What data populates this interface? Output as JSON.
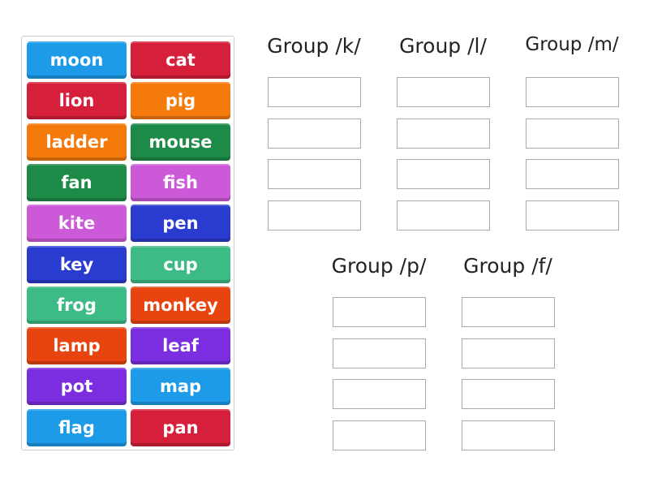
{
  "tiles": [
    {
      "label": "moon",
      "color": "#1e9be8"
    },
    {
      "label": "cat",
      "color": "#d61f3a"
    },
    {
      "label": "lion",
      "color": "#d61f3a"
    },
    {
      "label": "pig",
      "color": "#f57a0c"
    },
    {
      "label": "ladder",
      "color": "#f57a0c"
    },
    {
      "label": "mouse",
      "color": "#1e8a48"
    },
    {
      "label": "fan",
      "color": "#1e8a48"
    },
    {
      "label": "fish",
      "color": "#cc5ad8"
    },
    {
      "label": "kite",
      "color": "#cc5ad8"
    },
    {
      "label": "pen",
      "color": "#2a3bd0"
    },
    {
      "label": "key",
      "color": "#2a3bd0"
    },
    {
      "label": "cup",
      "color": "#3dbb86"
    },
    {
      "label": "frog",
      "color": "#3dbb86"
    },
    {
      "label": "monkey",
      "color": "#e84410"
    },
    {
      "label": "lamp",
      "color": "#e84410"
    },
    {
      "label": "leaf",
      "color": "#7a2ee0"
    },
    {
      "label": "pot",
      "color": "#7a2ee0"
    },
    {
      "label": "map",
      "color": "#1e9be8"
    },
    {
      "label": "flag",
      "color": "#1e9be8"
    },
    {
      "label": "pan",
      "color": "#d61f3a"
    }
  ],
  "groups": [
    {
      "title": "Group /k/"
    },
    {
      "title": "Group /l/"
    },
    {
      "title": "Group /m/"
    },
    {
      "title": "Group /p/"
    },
    {
      "title": "Group /f/"
    }
  ]
}
